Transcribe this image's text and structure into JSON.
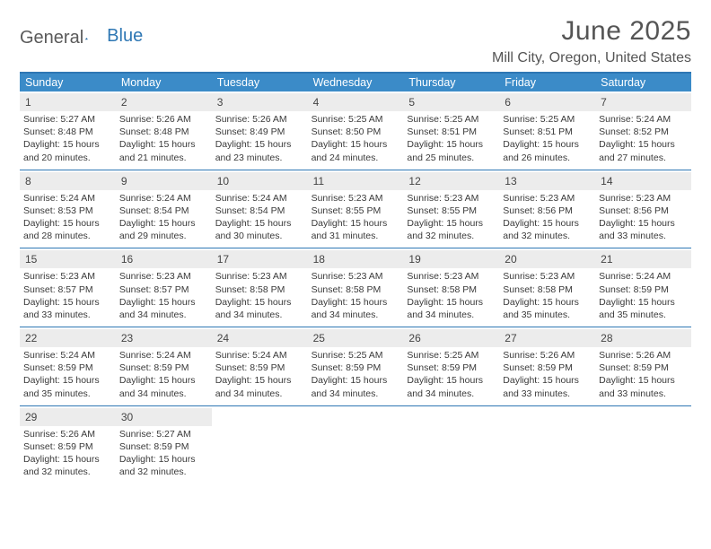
{
  "logo": {
    "text1": "General",
    "text2": "Blue"
  },
  "title": "June 2025",
  "location": "Mill City, Oregon, United States",
  "colors": {
    "header_bg": "#3b8bc8",
    "border": "#2e77b4",
    "daynum_bg": "#ececec",
    "text": "#3a3a3a",
    "logo_blue": "#2e77b4"
  },
  "day_names": [
    "Sunday",
    "Monday",
    "Tuesday",
    "Wednesday",
    "Thursday",
    "Friday",
    "Saturday"
  ],
  "weeks": [
    [
      {
        "n": "1",
        "sr": "5:27 AM",
        "ss": "8:48 PM",
        "dl": "15 hours and 20 minutes."
      },
      {
        "n": "2",
        "sr": "5:26 AM",
        "ss": "8:48 PM",
        "dl": "15 hours and 21 minutes."
      },
      {
        "n": "3",
        "sr": "5:26 AM",
        "ss": "8:49 PM",
        "dl": "15 hours and 23 minutes."
      },
      {
        "n": "4",
        "sr": "5:25 AM",
        "ss": "8:50 PM",
        "dl": "15 hours and 24 minutes."
      },
      {
        "n": "5",
        "sr": "5:25 AM",
        "ss": "8:51 PM",
        "dl": "15 hours and 25 minutes."
      },
      {
        "n": "6",
        "sr": "5:25 AM",
        "ss": "8:51 PM",
        "dl": "15 hours and 26 minutes."
      },
      {
        "n": "7",
        "sr": "5:24 AM",
        "ss": "8:52 PM",
        "dl": "15 hours and 27 minutes."
      }
    ],
    [
      {
        "n": "8",
        "sr": "5:24 AM",
        "ss": "8:53 PM",
        "dl": "15 hours and 28 minutes."
      },
      {
        "n": "9",
        "sr": "5:24 AM",
        "ss": "8:54 PM",
        "dl": "15 hours and 29 minutes."
      },
      {
        "n": "10",
        "sr": "5:24 AM",
        "ss": "8:54 PM",
        "dl": "15 hours and 30 minutes."
      },
      {
        "n": "11",
        "sr": "5:23 AM",
        "ss": "8:55 PM",
        "dl": "15 hours and 31 minutes."
      },
      {
        "n": "12",
        "sr": "5:23 AM",
        "ss": "8:55 PM",
        "dl": "15 hours and 32 minutes."
      },
      {
        "n": "13",
        "sr": "5:23 AM",
        "ss": "8:56 PM",
        "dl": "15 hours and 32 minutes."
      },
      {
        "n": "14",
        "sr": "5:23 AM",
        "ss": "8:56 PM",
        "dl": "15 hours and 33 minutes."
      }
    ],
    [
      {
        "n": "15",
        "sr": "5:23 AM",
        "ss": "8:57 PM",
        "dl": "15 hours and 33 minutes."
      },
      {
        "n": "16",
        "sr": "5:23 AM",
        "ss": "8:57 PM",
        "dl": "15 hours and 34 minutes."
      },
      {
        "n": "17",
        "sr": "5:23 AM",
        "ss": "8:58 PM",
        "dl": "15 hours and 34 minutes."
      },
      {
        "n": "18",
        "sr": "5:23 AM",
        "ss": "8:58 PM",
        "dl": "15 hours and 34 minutes."
      },
      {
        "n": "19",
        "sr": "5:23 AM",
        "ss": "8:58 PM",
        "dl": "15 hours and 34 minutes."
      },
      {
        "n": "20",
        "sr": "5:23 AM",
        "ss": "8:58 PM",
        "dl": "15 hours and 35 minutes."
      },
      {
        "n": "21",
        "sr": "5:24 AM",
        "ss": "8:59 PM",
        "dl": "15 hours and 35 minutes."
      }
    ],
    [
      {
        "n": "22",
        "sr": "5:24 AM",
        "ss": "8:59 PM",
        "dl": "15 hours and 35 minutes."
      },
      {
        "n": "23",
        "sr": "5:24 AM",
        "ss": "8:59 PM",
        "dl": "15 hours and 34 minutes."
      },
      {
        "n": "24",
        "sr": "5:24 AM",
        "ss": "8:59 PM",
        "dl": "15 hours and 34 minutes."
      },
      {
        "n": "25",
        "sr": "5:25 AM",
        "ss": "8:59 PM",
        "dl": "15 hours and 34 minutes."
      },
      {
        "n": "26",
        "sr": "5:25 AM",
        "ss": "8:59 PM",
        "dl": "15 hours and 34 minutes."
      },
      {
        "n": "27",
        "sr": "5:26 AM",
        "ss": "8:59 PM",
        "dl": "15 hours and 33 minutes."
      },
      {
        "n": "28",
        "sr": "5:26 AM",
        "ss": "8:59 PM",
        "dl": "15 hours and 33 minutes."
      }
    ],
    [
      {
        "n": "29",
        "sr": "5:26 AM",
        "ss": "8:59 PM",
        "dl": "15 hours and 32 minutes."
      },
      {
        "n": "30",
        "sr": "5:27 AM",
        "ss": "8:59 PM",
        "dl": "15 hours and 32 minutes."
      },
      null,
      null,
      null,
      null,
      null
    ]
  ],
  "labels": {
    "sunrise": "Sunrise: ",
    "sunset": "Sunset: ",
    "daylight": "Daylight: "
  }
}
